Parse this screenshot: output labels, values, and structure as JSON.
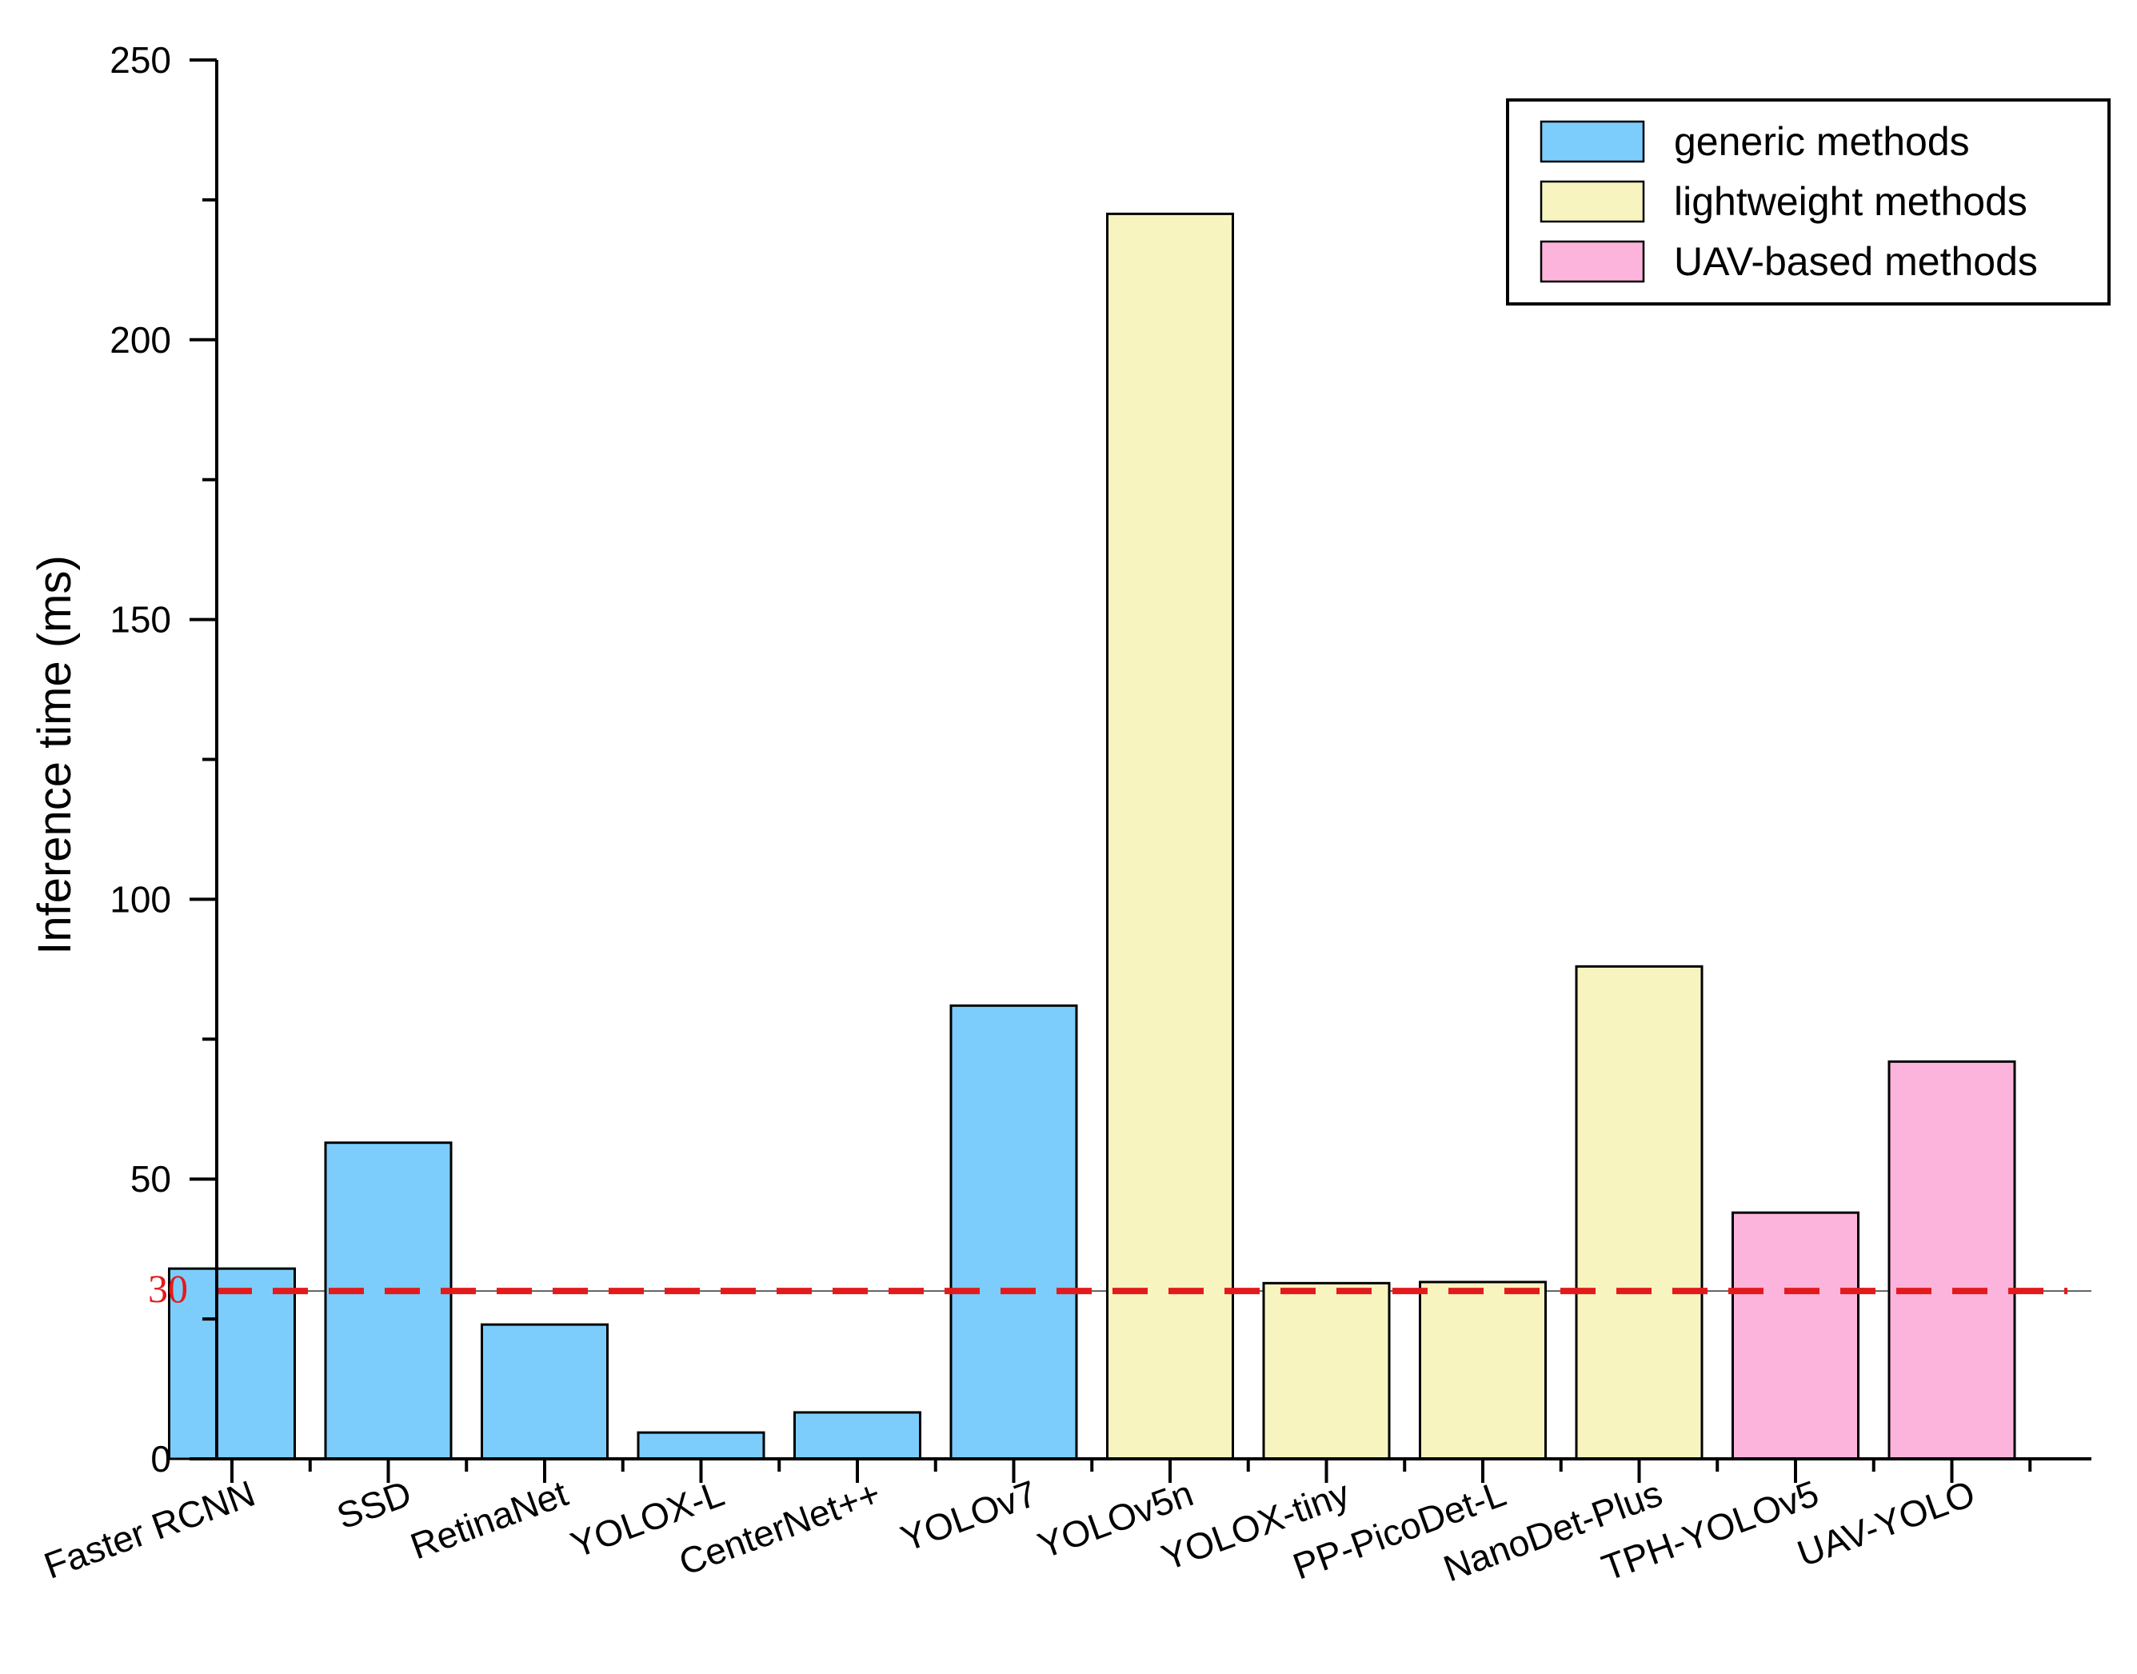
{
  "chart_data": {
    "type": "bar",
    "title": "",
    "xlabel": "",
    "ylabel": "Inference time (ms)",
    "ylim": [
      0,
      250
    ],
    "yticks": [
      0,
      50,
      100,
      150,
      200,
      250
    ],
    "grid": false,
    "legend_position": "top-right",
    "categories": [
      "Faster RCNN",
      "SSD",
      "RetinaNet",
      "YOLOX-L",
      "CenterNet++",
      "YOLOv7",
      "YOLOv5n",
      "YOLOX-tiny",
      "PP-PicoDet-L",
      "NanoDet-Plus",
      "TPH-YOLOv5",
      "UAV-YOLO"
    ],
    "values": [
      34,
      56.5,
      24,
      4.7,
      8.3,
      81,
      222.5,
      31.4,
      31.6,
      88,
      44,
      71
    ],
    "groups": [
      0,
      0,
      0,
      0,
      0,
      0,
      1,
      1,
      1,
      1,
      2,
      2
    ],
    "series": [
      {
        "name": "generic methods",
        "color": "#7ccdfc"
      },
      {
        "name": "lightweight methods",
        "color": "#f7f4c0"
      },
      {
        "name": "UAV-based methods",
        "color": "#fdb4dc"
      }
    ],
    "reference_line": {
      "value": 30,
      "label": "30",
      "color": "#e31a1c"
    }
  }
}
